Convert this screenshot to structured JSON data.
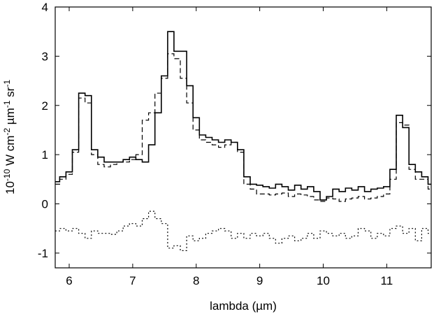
{
  "chart_data": {
    "type": "line",
    "title": "",
    "xlabel": "lambda (µm)",
    "ylabel": {
      "base": "10",
      "exp1": "-10",
      "unit1": " W cm",
      "exp2": "-2",
      "unit2": " µm",
      "exp3": "-1",
      "unit3": " sr",
      "exp4": "-1"
    },
    "xlim": [
      5.78,
      11.7
    ],
    "ylim": [
      -1.3,
      4
    ],
    "xticks": [
      6,
      7,
      8,
      9,
      10,
      11
    ],
    "yticks": [
      -1,
      0,
      1,
      2,
      3,
      4
    ],
    "grid": false,
    "legend": "none",
    "step_width": 0.1,
    "series": [
      {
        "style": "solid",
        "x": [
          5.8,
          5.9,
          6.0,
          6.1,
          6.2,
          6.3,
          6.4,
          6.5,
          6.6,
          6.7,
          6.8,
          6.9,
          7.0,
          7.1,
          7.2,
          7.3,
          7.4,
          7.5,
          7.6,
          7.7,
          7.8,
          7.9,
          8.0,
          8.1,
          8.2,
          8.3,
          8.4,
          8.5,
          8.6,
          8.7,
          8.8,
          8.9,
          9.0,
          9.1,
          9.2,
          9.3,
          9.4,
          9.5,
          9.6,
          9.7,
          9.8,
          9.9,
          10.0,
          10.1,
          10.2,
          10.3,
          10.4,
          10.5,
          10.6,
          10.7,
          10.8,
          10.9,
          11.0,
          11.1,
          11.2,
          11.3,
          11.4,
          11.5,
          11.6,
          11.7
        ],
        "y": [
          0.45,
          0.55,
          0.65,
          1.1,
          2.25,
          2.2,
          1.1,
          0.95,
          0.85,
          0.85,
          0.85,
          0.9,
          0.95,
          0.9,
          0.85,
          1.2,
          1.85,
          2.6,
          3.5,
          3.1,
          3.1,
          2.4,
          1.75,
          1.4,
          1.35,
          1.3,
          1.25,
          1.3,
          1.25,
          1.1,
          0.55,
          0.4,
          0.38,
          0.35,
          0.32,
          0.4,
          0.35,
          0.28,
          0.38,
          0.3,
          0.35,
          0.25,
          0.08,
          0.15,
          0.3,
          0.25,
          0.32,
          0.28,
          0.35,
          0.25,
          0.3,
          0.32,
          0.35,
          0.7,
          1.8,
          1.55,
          0.8,
          0.65,
          0.55,
          0.4
        ]
      },
      {
        "style": "dashed",
        "x": [
          5.8,
          5.9,
          6.0,
          6.1,
          6.2,
          6.3,
          6.4,
          6.5,
          6.6,
          6.7,
          6.8,
          6.9,
          7.0,
          7.1,
          7.2,
          7.3,
          7.4,
          7.5,
          7.6,
          7.7,
          7.8,
          7.9,
          8.0,
          8.1,
          8.2,
          8.3,
          8.4,
          8.5,
          8.6,
          8.7,
          8.8,
          8.9,
          9.0,
          9.1,
          9.2,
          9.3,
          9.4,
          9.5,
          9.6,
          9.7,
          9.8,
          9.9,
          10.0,
          10.1,
          10.2,
          10.3,
          10.4,
          10.5,
          10.6,
          10.7,
          10.8,
          10.9,
          11.0,
          11.1,
          11.2,
          11.3,
          11.4,
          11.5,
          11.6,
          11.7
        ],
        "y": [
          0.4,
          0.5,
          0.6,
          1.05,
          2.15,
          2.05,
          1.0,
          0.8,
          0.75,
          0.8,
          0.85,
          0.85,
          0.9,
          1.0,
          1.7,
          1.85,
          2.25,
          2.55,
          3.05,
          2.95,
          2.55,
          2.05,
          1.5,
          1.3,
          1.25,
          1.2,
          1.15,
          1.2,
          1.25,
          1.05,
          0.4,
          0.3,
          0.2,
          0.2,
          0.18,
          0.2,
          0.22,
          0.15,
          0.2,
          0.18,
          0.15,
          0.08,
          0.05,
          0.12,
          0.1,
          0.05,
          0.1,
          0.12,
          0.15,
          0.1,
          0.12,
          0.15,
          0.2,
          0.5,
          1.65,
          1.6,
          0.7,
          0.5,
          0.5,
          0.3
        ]
      },
      {
        "style": "dotted",
        "x": [
          5.8,
          5.9,
          6.0,
          6.1,
          6.2,
          6.3,
          6.4,
          6.5,
          6.6,
          6.7,
          6.8,
          6.9,
          7.0,
          7.1,
          7.2,
          7.3,
          7.4,
          7.5,
          7.6,
          7.7,
          7.8,
          7.9,
          8.0,
          8.1,
          8.2,
          8.3,
          8.4,
          8.5,
          8.6,
          8.7,
          8.8,
          8.9,
          9.0,
          9.1,
          9.2,
          9.3,
          9.4,
          9.5,
          9.6,
          9.7,
          9.8,
          9.9,
          10.0,
          10.1,
          10.2,
          10.3,
          10.4,
          10.5,
          10.6,
          10.7,
          10.8,
          10.9,
          11.0,
          11.1,
          11.2,
          11.3,
          11.4,
          11.5,
          11.6,
          11.7
        ],
        "y": [
          -0.55,
          -0.5,
          -0.55,
          -0.5,
          -0.6,
          -0.7,
          -0.55,
          -0.6,
          -0.6,
          -0.62,
          -0.55,
          -0.45,
          -0.4,
          -0.45,
          -0.3,
          -0.15,
          -0.3,
          -0.4,
          -0.9,
          -0.85,
          -0.95,
          -0.65,
          -0.75,
          -0.7,
          -0.6,
          -0.55,
          -0.5,
          -0.55,
          -0.7,
          -0.6,
          -0.7,
          -0.6,
          -0.65,
          -0.6,
          -0.7,
          -0.8,
          -0.7,
          -0.65,
          -0.75,
          -0.7,
          -0.6,
          -0.7,
          -0.55,
          -0.6,
          -0.65,
          -0.6,
          -0.7,
          -0.65,
          -0.5,
          -0.55,
          -0.7,
          -0.6,
          -0.65,
          -0.5,
          -0.45,
          -0.6,
          -0.5,
          -0.75,
          -0.5,
          -0.6
        ]
      }
    ]
  }
}
